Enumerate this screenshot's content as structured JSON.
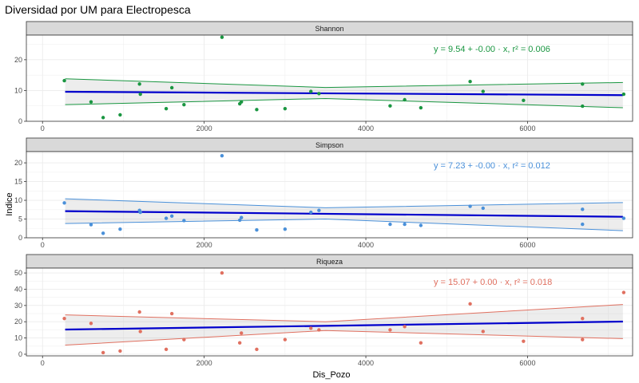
{
  "chart_data": {
    "type": "scatter",
    "title": "Diversidad por UM para Electropesca",
    "xlabel": "Dis_Pozo",
    "ylabel": "Indice",
    "xlim": [
      -200,
      7300
    ],
    "x_ticks": [
      0,
      2000,
      4000,
      6000
    ],
    "x_tick_labels": [
      "0",
      "2000",
      "4000",
      "6000"
    ],
    "grid": true,
    "fit_line_color": "#0000cc",
    "panels": [
      {
        "strip": "Shannon",
        "color": "#1a9641",
        "ylim": [
          0,
          28
        ],
        "y_ticks": [
          0,
          10,
          20
        ],
        "y_tick_labels": [
          "0",
          "10",
          "20"
        ],
        "fit": {
          "x": [
            280,
            7180
          ],
          "y": [
            9.6,
            8.5
          ]
        },
        "ci_upper": [
          [
            280,
            13.8
          ],
          [
            3500,
            11.0
          ],
          [
            7180,
            12.6
          ]
        ],
        "ci_lower": [
          [
            280,
            5.4
          ],
          [
            3500,
            7.4
          ],
          [
            7180,
            4.4
          ]
        ],
        "equation": "y = 9.54 + -0.00 · x,  r² = 0.006",
        "points": [
          [
            270,
            13.2
          ],
          [
            600,
            6.3
          ],
          [
            750,
            1.2
          ],
          [
            960,
            2.1
          ],
          [
            1200,
            12.1
          ],
          [
            1210,
            8.8
          ],
          [
            1530,
            4.1
          ],
          [
            1600,
            10.9
          ],
          [
            1750,
            5.4
          ],
          [
            2220,
            27.3
          ],
          [
            2440,
            5.7
          ],
          [
            2460,
            6.3
          ],
          [
            2650,
            3.8
          ],
          [
            3000,
            4.1
          ],
          [
            3320,
            9.7
          ],
          [
            3420,
            9.0
          ],
          [
            4300,
            5.0
          ],
          [
            4480,
            7.0
          ],
          [
            4680,
            4.4
          ],
          [
            5290,
            12.9
          ],
          [
            5450,
            9.7
          ],
          [
            5950,
            6.8
          ],
          [
            6680,
            12.1
          ],
          [
            6680,
            4.9
          ],
          [
            7190,
            8.8
          ]
        ]
      },
      {
        "strip": "Simpson",
        "color": "#4a90d9",
        "ylim": [
          0,
          23
        ],
        "y_ticks": [
          0,
          5,
          10,
          15,
          20
        ],
        "y_tick_labels": [
          "0",
          "5",
          "10",
          "15",
          "20"
        ],
        "fit": {
          "x": [
            280,
            7180
          ],
          "y": [
            7.1,
            5.6
          ]
        },
        "ci_upper": [
          [
            280,
            10.4
          ],
          [
            3500,
            8.0
          ],
          [
            7180,
            9.4
          ]
        ],
        "ci_lower": [
          [
            280,
            3.8
          ],
          [
            3500,
            5.0
          ],
          [
            7180,
            1.9
          ]
        ],
        "equation": "y = 7.23 + -0.00 · x,  r² = 0.012",
        "points": [
          [
            270,
            9.3
          ],
          [
            600,
            3.5
          ],
          [
            750,
            1.2
          ],
          [
            960,
            2.3
          ],
          [
            1200,
            7.3
          ],
          [
            1210,
            6.8
          ],
          [
            1530,
            5.2
          ],
          [
            1600,
            5.8
          ],
          [
            1750,
            4.6
          ],
          [
            2220,
            21.9
          ],
          [
            2440,
            4.7
          ],
          [
            2460,
            5.4
          ],
          [
            2650,
            2.1
          ],
          [
            3000,
            2.3
          ],
          [
            3320,
            6.8
          ],
          [
            3420,
            7.3
          ],
          [
            4300,
            3.6
          ],
          [
            4480,
            3.6
          ],
          [
            4680,
            3.3
          ],
          [
            5290,
            8.4
          ],
          [
            5450,
            7.9
          ],
          [
            6680,
            7.6
          ],
          [
            6680,
            3.6
          ],
          [
            7190,
            5.2
          ]
        ]
      },
      {
        "strip": "Riqueza",
        "color": "#e07060",
        "ylim": [
          -1,
          53
        ],
        "y_ticks": [
          0,
          10,
          20,
          30,
          40,
          50
        ],
        "y_tick_labels": [
          "0",
          "10",
          "20",
          "30",
          "40",
          "50"
        ],
        "fit": {
          "x": [
            280,
            7180
          ],
          "y": [
            15.2,
            20.1
          ]
        },
        "ci_upper": [
          [
            280,
            24.2
          ],
          [
            3500,
            20.0
          ],
          [
            7180,
            30.6
          ]
        ],
        "ci_lower": [
          [
            280,
            5.6
          ],
          [
            3500,
            14.6
          ],
          [
            7180,
            9.6
          ]
        ],
        "equation": "y = 15.07 + 0.00 · x,  r² = 0.018",
        "points": [
          [
            270,
            22.0
          ],
          [
            600,
            19.0
          ],
          [
            750,
            1.0
          ],
          [
            960,
            2.0
          ],
          [
            1200,
            26.0
          ],
          [
            1210,
            14.0
          ],
          [
            1530,
            3.0
          ],
          [
            1600,
            25.0
          ],
          [
            1750,
            9.0
          ],
          [
            2220,
            50.0
          ],
          [
            2440,
            7.0
          ],
          [
            2460,
            13.0
          ],
          [
            2650,
            3.0
          ],
          [
            3000,
            9.0
          ],
          [
            3320,
            16.0
          ],
          [
            3420,
            15.0
          ],
          [
            4300,
            15.0
          ],
          [
            4480,
            17.0
          ],
          [
            4680,
            7.0
          ],
          [
            5290,
            31.0
          ],
          [
            5450,
            14.0
          ],
          [
            5950,
            8.0
          ],
          [
            6680,
            22.0
          ],
          [
            6680,
            9.0
          ],
          [
            7190,
            38.0
          ]
        ]
      }
    ]
  }
}
